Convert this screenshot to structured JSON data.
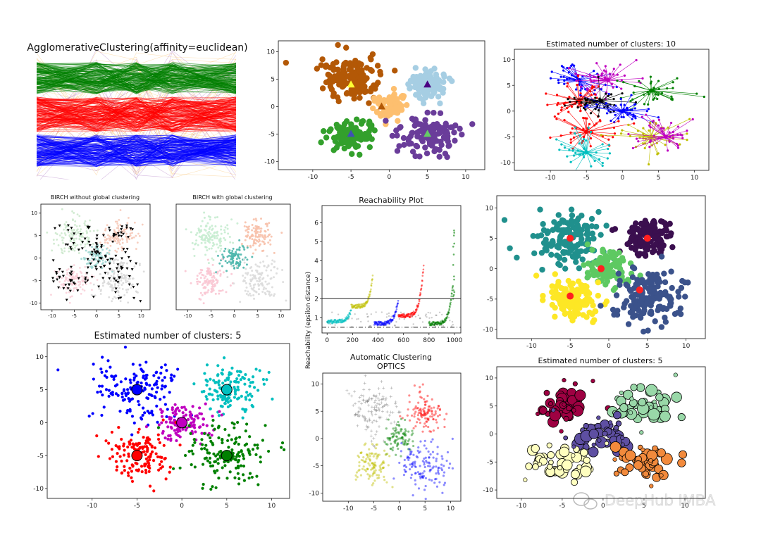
{
  "colors": {
    "green": "#008000",
    "red": "#ff0000",
    "blue": "#0000ff",
    "orange": "#f5b041",
    "purple": "#8e44ad",
    "tab_brown": "#b35806",
    "tab_lightblue": "#a6cee3",
    "tab_peach": "#fdbf6f",
    "tab_green": "#33a02c",
    "tab_purple": "#6a3d9a",
    "cyan": "#00bfbf",
    "olive": "#bfbf00",
    "magenta": "#bf00bf",
    "black": "#000000"
  },
  "watermark": "DeepHub IMBA",
  "chart_data": [
    {
      "id": "agglomerative",
      "type": "line",
      "title": "AgglomerativeClustering(affinity=euclidean)",
      "series": [
        {
          "color_key": "green",
          "band": [
            0.35,
            0.9
          ]
        },
        {
          "color_key": "red",
          "band": [
            -0.3,
            0.3
          ]
        },
        {
          "color_key": "blue",
          "band": [
            -0.9,
            -0.35
          ]
        }
      ]
    },
    {
      "id": "kmeans-centers",
      "type": "scatter",
      "title": "",
      "xlim": [
        -14.5,
        12.5
      ],
      "ylim": [
        -11.5,
        12
      ],
      "xticks": [
        -10,
        -5,
        0,
        5,
        10
      ],
      "yticks": [
        -10,
        -5,
        0,
        5,
        10
      ],
      "clusters": [
        {
          "color_key": "tab_brown",
          "center": [
            -5,
            5
          ],
          "spread": 2.6,
          "n": 150
        },
        {
          "color_key": "tab_lightblue",
          "center": [
            5,
            4
          ],
          "spread": 1.7,
          "n": 110
        },
        {
          "color_key": "tab_peach",
          "center": [
            0,
            0
          ],
          "spread": 1.5,
          "n": 90
        },
        {
          "color_key": "tab_green",
          "center": [
            -5,
            -5
          ],
          "spread": 1.8,
          "n": 110
        },
        {
          "color_key": "tab_purple",
          "center": [
            5,
            -5
          ],
          "spread": 2.5,
          "n": 130
        }
      ],
      "markers": [
        {
          "x": -5,
          "y": 4,
          "color": "#ffff33"
        },
        {
          "x": 5,
          "y": 4,
          "color": "#4b0082"
        },
        {
          "x": -5,
          "y": -5,
          "color": "#3f51b5"
        },
        {
          "x": 5,
          "y": -5,
          "color": "#66cc66"
        },
        {
          "x": -1,
          "y": 0,
          "color": "#b35806"
        }
      ]
    },
    {
      "id": "affinity-propagation",
      "type": "scatter",
      "title": "Estimated number of clusters: 10",
      "xlim": [
        -15,
        12
      ],
      "ylim": [
        -11.5,
        12
      ],
      "xticks": [
        -10,
        -5,
        0,
        5,
        10
      ],
      "yticks": [
        -10,
        -5,
        0,
        5,
        10
      ]
    },
    {
      "id": "birch-no-global",
      "type": "scatter",
      "title": "BIRCH without global clustering",
      "xlim": [
        -12.5,
        12
      ],
      "ylim": [
        -11.5,
        12
      ],
      "xticks": [
        -10,
        -5,
        0,
        5,
        10
      ],
      "yticks": [
        -10,
        -5,
        0,
        5,
        10
      ]
    },
    {
      "id": "birch-global",
      "type": "scatter",
      "title": "BIRCH with global clustering",
      "xlim": [
        -12.5,
        12
      ],
      "ylim": [
        -11.5,
        12
      ],
      "xticks": [
        -10,
        -5,
        0,
        5,
        10
      ],
      "yticks": []
    },
    {
      "id": "reachability",
      "type": "scatter",
      "title": "Reachability Plot",
      "ylabel": "Reachability (epsilon distance)",
      "xlim": [
        -40,
        1050
      ],
      "ylim": [
        0.2,
        6.9
      ],
      "xticks": [
        0,
        200,
        400,
        600,
        800,
        1000
      ],
      "yticks": [
        1,
        2,
        3,
        4,
        5,
        6
      ],
      "hline_solid": 2.0,
      "hline_dashdot": 0.5
    },
    {
      "id": "meanshift",
      "type": "scatter",
      "title": "",
      "xlim": [
        -14.5,
        12.5
      ],
      "ylim": [
        -11.5,
        12
      ],
      "xticks": [
        -10,
        -5,
        0,
        5,
        10
      ],
      "yticks": [
        -10,
        -5,
        0,
        5,
        10
      ]
    },
    {
      "id": "kmeans-5",
      "type": "scatter",
      "title": "Estimated number of clusters: 5",
      "xlim": [
        -15,
        12
      ],
      "ylim": [
        -11.5,
        12
      ],
      "xticks": [
        -10,
        -5,
        0,
        5,
        10
      ],
      "yticks": [
        -10,
        -5,
        0,
        5,
        10
      ]
    },
    {
      "id": "optics-auto",
      "type": "scatter",
      "title_lines": [
        "Automatic Clustering",
        "OPTICS"
      ],
      "xlim": [
        -15,
        12
      ],
      "ylim": [
        -11.5,
        12
      ],
      "xticks": [
        -10,
        -5,
        0,
        5,
        10
      ],
      "yticks": [
        -10,
        -5,
        0,
        5,
        10
      ]
    },
    {
      "id": "dbscan",
      "type": "scatter",
      "title": "Estimated number of clusters: 5",
      "xlim": [
        -13,
        12.5
      ],
      "ylim": [
        -11.5,
        12
      ],
      "xticks": [
        -10,
        -5,
        0,
        5,
        10
      ],
      "yticks": [
        -10,
        -5,
        0,
        5,
        10
      ]
    }
  ]
}
